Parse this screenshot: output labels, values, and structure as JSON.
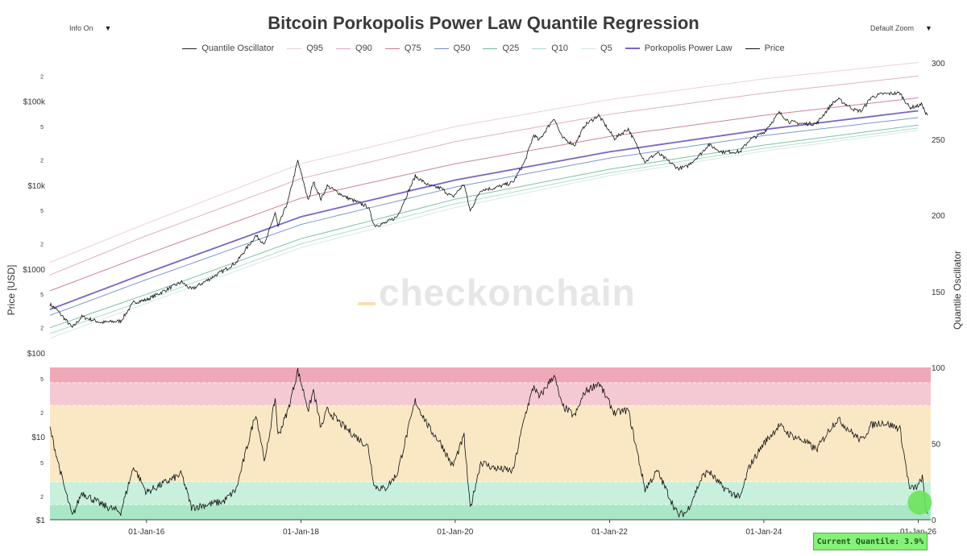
{
  "controls": {
    "info_label": "Info On",
    "zoom_label": "Default Zoom",
    "dropdown_glyph": "▼"
  },
  "watermark": "checkonchain",
  "current_quantile": "Current Quantile: 3.9%",
  "legend": [
    {
      "label": "Quantile Oscillator",
      "color": "#222222"
    },
    {
      "label": "Q95",
      "color": "#e9cdd2"
    },
    {
      "label": "Q90",
      "color": "#dcaab3"
    },
    {
      "label": "Q75",
      "color": "#c77a85"
    },
    {
      "label": "Q50",
      "color": "#6d8fc5"
    },
    {
      "label": "Q25",
      "color": "#6fba98"
    },
    {
      "label": "Q10",
      "color": "#a6d9c1"
    },
    {
      "label": "Q5",
      "color": "#cfeadb"
    },
    {
      "label": "Porkopolis Power Law",
      "color": "#7667c6"
    },
    {
      "label": "Price",
      "color": "#111111"
    }
  ],
  "chart_data": {
    "type": "line",
    "title": "Bitcoin Porkopolis Power Law Quantile Regression",
    "x_ticks": [
      "01-Jan-16",
      "01-Jan-18",
      "01-Jan-20",
      "01-Jan-22",
      "01-Jan-24",
      "01-Jan-26"
    ],
    "x_range": [
      "2014-10-01",
      "2026-03-01"
    ],
    "price_panel": {
      "ylabel": "Price [USD]",
      "scale": "log",
      "ylim": [
        100,
        300000
      ],
      "y_ticks": [
        "$100",
        "2",
        "5",
        "$1000",
        "2",
        "5",
        "$10k",
        "2",
        "5",
        "$100k",
        "2"
      ],
      "y2label": "Quantile Oscillator",
      "y2_ticks": [
        "150",
        "200",
        "250",
        "300"
      ],
      "bands": [
        {
          "name": "Q95",
          "anchor_values": [
            {
              "date": "2014-10-01",
              "value": 1200
            },
            {
              "date": "2016-01-01",
              "value": 3500
            },
            {
              "date": "2018-01-01",
              "value": 18000
            },
            {
              "date": "2020-01-01",
              "value": 50000
            },
            {
              "date": "2022-01-01",
              "value": 105000
            },
            {
              "date": "2024-01-01",
              "value": 185000
            },
            {
              "date": "2026-01-01",
              "value": 290000
            }
          ]
        },
        {
          "name": "Q90",
          "anchor_values": [
            {
              "date": "2014-10-01",
              "value": 850
            },
            {
              "date": "2016-01-01",
              "value": 2500
            },
            {
              "date": "2018-01-01",
              "value": 12000
            },
            {
              "date": "2020-01-01",
              "value": 33000
            },
            {
              "date": "2022-01-01",
              "value": 70000
            },
            {
              "date": "2024-01-01",
              "value": 125000
            },
            {
              "date": "2026-01-01",
              "value": 200000
            }
          ]
        },
        {
          "name": "Q75",
          "anchor_values": [
            {
              "date": "2014-10-01",
              "value": 550
            },
            {
              "date": "2016-01-01",
              "value": 1500
            },
            {
              "date": "2018-01-01",
              "value": 7000
            },
            {
              "date": "2020-01-01",
              "value": 18000
            },
            {
              "date": "2022-01-01",
              "value": 38000
            },
            {
              "date": "2024-01-01",
              "value": 68000
            },
            {
              "date": "2026-01-01",
              "value": 110000
            }
          ]
        },
        {
          "name": "Porkopolis Power Law",
          "anchor_values": [
            {
              "date": "2014-10-01",
              "value": 330
            },
            {
              "date": "2016-01-01",
              "value": 900
            },
            {
              "date": "2018-01-01",
              "value": 4200
            },
            {
              "date": "2020-01-01",
              "value": 11500
            },
            {
              "date": "2022-01-01",
              "value": 25000
            },
            {
              "date": "2024-01-01",
              "value": 46000
            },
            {
              "date": "2026-01-01",
              "value": 77000
            }
          ]
        },
        {
          "name": "Q50",
          "anchor_values": [
            {
              "date": "2014-10-01",
              "value": 280
            },
            {
              "date": "2016-01-01",
              "value": 750
            },
            {
              "date": "2018-01-01",
              "value": 3400
            },
            {
              "date": "2020-01-01",
              "value": 9500
            },
            {
              "date": "2022-01-01",
              "value": 21000
            },
            {
              "date": "2024-01-01",
              "value": 39000
            },
            {
              "date": "2026-01-01",
              "value": 64000
            }
          ]
        },
        {
          "name": "Q25",
          "anchor_values": [
            {
              "date": "2014-10-01",
              "value": 200
            },
            {
              "date": "2016-01-01",
              "value": 500
            },
            {
              "date": "2018-01-01",
              "value": 2300
            },
            {
              "date": "2020-01-01",
              "value": 6800
            },
            {
              "date": "2022-01-01",
              "value": 15500
            },
            {
              "date": "2024-01-01",
              "value": 30000
            },
            {
              "date": "2026-01-01",
              "value": 52000
            }
          ]
        },
        {
          "name": "Q10",
          "anchor_values": [
            {
              "date": "2014-10-01",
              "value": 170
            },
            {
              "date": "2016-01-01",
              "value": 430
            },
            {
              "date": "2018-01-01",
              "value": 2000
            },
            {
              "date": "2020-01-01",
              "value": 6000
            },
            {
              "date": "2022-01-01",
              "value": 14000
            },
            {
              "date": "2024-01-01",
              "value": 27500
            },
            {
              "date": "2026-01-01",
              "value": 48000
            }
          ]
        },
        {
          "name": "Q5",
          "anchor_values": [
            {
              "date": "2014-10-01",
              "value": 150
            },
            {
              "date": "2016-01-01",
              "value": 390
            },
            {
              "date": "2018-01-01",
              "value": 1800
            },
            {
              "date": "2020-01-01",
              "value": 5400
            },
            {
              "date": "2022-01-01",
              "value": 13000
            },
            {
              "date": "2024-01-01",
              "value": 25500
            },
            {
              "date": "2026-01-01",
              "value": 45000
            }
          ]
        }
      ],
      "price": [
        [
          "2014-10-01",
          380
        ],
        [
          "2014-11-01",
          330
        ],
        [
          "2015-01-15",
          200
        ],
        [
          "2015-03-01",
          270
        ],
        [
          "2015-06-01",
          230
        ],
        [
          "2015-09-01",
          240
        ],
        [
          "2015-11-01",
          400
        ],
        [
          "2016-01-01",
          430
        ],
        [
          "2016-06-15",
          700
        ],
        [
          "2016-08-01",
          570
        ],
        [
          "2016-12-31",
          960
        ],
        [
          "2017-03-01",
          1200
        ],
        [
          "2017-06-01",
          2500
        ],
        [
          "2017-07-15",
          2000
        ],
        [
          "2017-09-01",
          4700
        ],
        [
          "2017-09-15",
          3200
        ],
        [
          "2017-11-01",
          6500
        ],
        [
          "2017-12-17",
          19500
        ],
        [
          "2018-02-06",
          6500
        ],
        [
          "2018-03-01",
          11000
        ],
        [
          "2018-04-06",
          6800
        ],
        [
          "2018-05-05",
          9800
        ],
        [
          "2018-08-01",
          7200
        ],
        [
          "2018-11-15",
          5500
        ],
        [
          "2018-12-15",
          3300
        ],
        [
          "2019-02-01",
          3500
        ],
        [
          "2019-04-01",
          4200
        ],
        [
          "2019-06-26",
          12800
        ],
        [
          "2019-09-01",
          9800
        ],
        [
          "2019-10-26",
          9200
        ],
        [
          "2019-12-20",
          7200
        ],
        [
          "2020-02-12",
          10300
        ],
        [
          "2020-03-12",
          4900
        ],
        [
          "2020-05-01",
          8800
        ],
        [
          "2020-07-01",
          9200
        ],
        [
          "2020-10-01",
          10800
        ],
        [
          "2020-11-25",
          19000
        ],
        [
          "2021-01-08",
          40000
        ],
        [
          "2021-02-01",
          34000
        ],
        [
          "2021-04-13",
          63500
        ],
        [
          "2021-05-20",
          37000
        ],
        [
          "2021-07-20",
          30000
        ],
        [
          "2021-09-06",
          52000
        ],
        [
          "2021-11-10",
          68000
        ],
        [
          "2022-01-24",
          36000
        ],
        [
          "2022-03-30",
          47000
        ],
        [
          "2022-06-18",
          19000
        ],
        [
          "2022-08-15",
          24300
        ],
        [
          "2022-11-21",
          15800
        ],
        [
          "2023-01-01",
          16600
        ],
        [
          "2023-03-15",
          24500
        ],
        [
          "2023-04-14",
          30500
        ],
        [
          "2023-06-15",
          25000
        ],
        [
          "2023-09-11",
          25000
        ],
        [
          "2023-10-24",
          34500
        ],
        [
          "2023-12-31",
          42300
        ],
        [
          "2024-03-14",
          73000
        ],
        [
          "2024-05-01",
          57000
        ],
        [
          "2024-07-05",
          54000
        ],
        [
          "2024-09-06",
          54000
        ],
        [
          "2024-11-20",
          94000
        ],
        [
          "2024-12-17",
          106000
        ],
        [
          "2025-03-10",
          78000
        ],
        [
          "2025-04-08",
          77000
        ],
        [
          "2025-05-22",
          111000
        ],
        [
          "2025-07-14",
          122000
        ],
        [
          "2025-10-06",
          125000
        ],
        [
          "2025-11-21",
          84000
        ],
        [
          "2025-12-31",
          88000
        ],
        [
          "2026-01-20",
          92000
        ],
        [
          "2026-02-05",
          71000
        ],
        [
          "2026-02-15",
          68000
        ]
      ]
    },
    "oscillator_panel": {
      "ylabel_ticks_left": [
        "$1",
        "2",
        "5",
        "$10",
        "2",
        "5"
      ],
      "y_ticks_right": [
        "0",
        "50",
        "100"
      ],
      "ylim": [
        0,
        100
      ],
      "zones": [
        {
          "from": 0,
          "to": 10,
          "color": "#a9e7c7"
        },
        {
          "from": 10,
          "to": 25,
          "color": "#c9f0dc"
        },
        {
          "from": 25,
          "to": 75,
          "color": "#fae8c5"
        },
        {
          "from": 75,
          "to": 90,
          "color": "#f4c9d3"
        },
        {
          "from": 90,
          "to": 100,
          "color": "#efa8b6"
        }
      ],
      "values": [
        [
          "2014-10-01",
          60
        ],
        [
          "2014-12-01",
          25
        ],
        [
          "2015-01-15",
          2
        ],
        [
          "2015-03-01",
          18
        ],
        [
          "2015-06-01",
          10
        ],
        [
          "2015-09-01",
          5
        ],
        [
          "2015-11-01",
          35
        ],
        [
          "2016-01-01",
          18
        ],
        [
          "2016-06-15",
          30
        ],
        [
          "2016-08-01",
          8
        ],
        [
          "2016-12-31",
          12
        ],
        [
          "2017-03-01",
          20
        ],
        [
          "2017-06-01",
          70
        ],
        [
          "2017-07-15",
          38
        ],
        [
          "2017-09-01",
          80
        ],
        [
          "2017-09-15",
          55
        ],
        [
          "2017-11-01",
          72
        ],
        [
          "2017-12-17",
          98
        ],
        [
          "2018-02-06",
          72
        ],
        [
          "2018-03-01",
          85
        ],
        [
          "2018-04-06",
          60
        ],
        [
          "2018-05-05",
          72
        ],
        [
          "2018-08-01",
          60
        ],
        [
          "2018-11-15",
          48
        ],
        [
          "2018-12-15",
          22
        ],
        [
          "2019-02-01",
          20
        ],
        [
          "2019-04-01",
          30
        ],
        [
          "2019-06-26",
          78
        ],
        [
          "2019-09-01",
          60
        ],
        [
          "2019-10-26",
          50
        ],
        [
          "2019-12-20",
          35
        ],
        [
          "2020-02-12",
          55
        ],
        [
          "2020-03-12",
          7
        ],
        [
          "2020-05-01",
          38
        ],
        [
          "2020-07-01",
          34
        ],
        [
          "2020-10-01",
          32
        ],
        [
          "2020-11-25",
          68
        ],
        [
          "2021-01-08",
          88
        ],
        [
          "2021-02-01",
          80
        ],
        [
          "2021-04-13",
          95
        ],
        [
          "2021-05-20",
          75
        ],
        [
          "2021-07-20",
          68
        ],
        [
          "2021-09-06",
          84
        ],
        [
          "2021-11-10",
          90
        ],
        [
          "2022-01-24",
          70
        ],
        [
          "2022-03-30",
          72
        ],
        [
          "2022-06-18",
          20
        ],
        [
          "2022-08-15",
          32
        ],
        [
          "2022-11-21",
          3
        ],
        [
          "2023-01-01",
          5
        ],
        [
          "2023-03-15",
          28
        ],
        [
          "2023-04-14",
          32
        ],
        [
          "2023-06-15",
          22
        ],
        [
          "2023-09-11",
          14
        ],
        [
          "2023-10-24",
          35
        ],
        [
          "2023-12-31",
          50
        ],
        [
          "2024-03-14",
          62
        ],
        [
          "2024-05-01",
          56
        ],
        [
          "2024-07-05",
          52
        ],
        [
          "2024-09-06",
          46
        ],
        [
          "2024-11-20",
          62
        ],
        [
          "2024-12-17",
          66
        ],
        [
          "2025-03-10",
          55
        ],
        [
          "2025-04-08",
          52
        ],
        [
          "2025-05-22",
          62
        ],
        [
          "2025-07-14",
          64
        ],
        [
          "2025-10-06",
          60
        ],
        [
          "2025-11-21",
          20
        ],
        [
          "2025-12-31",
          22
        ],
        [
          "2026-01-20",
          28
        ],
        [
          "2026-02-05",
          8
        ],
        [
          "2026-02-15",
          3.9
        ]
      ],
      "current_point": {
        "date": "2026-02-15",
        "value": 3.9,
        "color": "#6be35d"
      }
    }
  }
}
